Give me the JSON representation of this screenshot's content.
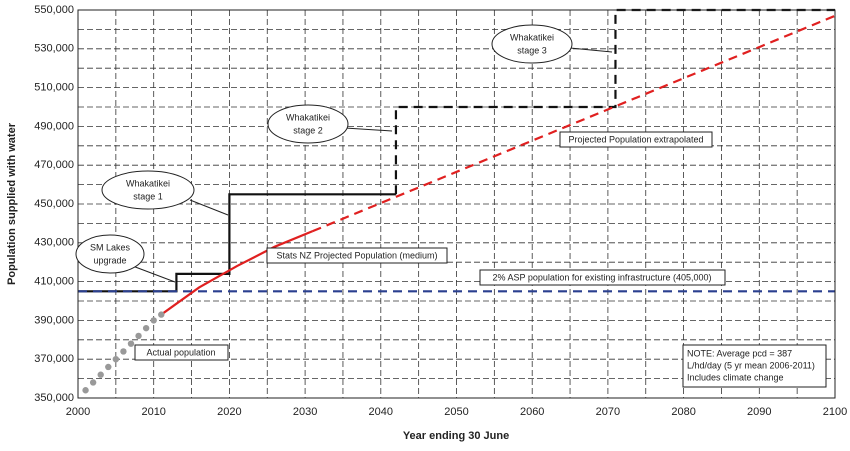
{
  "chart_data": {
    "type": "line",
    "xlabel": "Year ending 30 June",
    "ylabel": "Population supplied with water",
    "xlim": [
      2000,
      2100
    ],
    "ylim": [
      350000,
      550000
    ],
    "xticks": [
      2000,
      2010,
      2020,
      2030,
      2040,
      2050,
      2060,
      2070,
      2080,
      2090,
      2100
    ],
    "xgrid_minor": [
      2005,
      2015,
      2025,
      2035,
      2045,
      2055,
      2065,
      2075,
      2085,
      2095
    ],
    "yticks": [
      {
        "value": 350000,
        "label": "350,000"
      },
      {
        "value": 370000,
        "label": "370,000"
      },
      {
        "value": 390000,
        "label": "390,000"
      },
      {
        "value": 410000,
        "label": "410,000"
      },
      {
        "value": 430000,
        "label": "430,000"
      },
      {
        "value": 450000,
        "label": "450,000"
      },
      {
        "value": 470000,
        "label": "470,000"
      },
      {
        "value": 490000,
        "label": "490,000"
      },
      {
        "value": 510000,
        "label": "510,000"
      },
      {
        "value": 530000,
        "label": "530,000"
      },
      {
        "value": 550000,
        "label": "550,000"
      }
    ],
    "ygrid_minor": [
      360000,
      380000,
      400000,
      420000,
      440000,
      460000,
      480000,
      500000,
      520000,
      540000
    ],
    "grid": true,
    "series": [
      {
        "color": "#111111",
        "style": "solid",
        "x": [
          2000,
          2013,
          2013,
          2020,
          2020,
          2042
        ],
        "values": [
          405000,
          405000,
          414000,
          414000,
          455000,
          455000
        ]
      },
      {
        "color": "#111111",
        "style": "dashed",
        "x": [
          2042,
          2042,
          2071,
          2071,
          2100
        ],
        "values": [
          455000,
          500000,
          500000,
          550000,
          550000
        ]
      },
      {
        "name": "2% ASP population for existing infrastructure (405,000)",
        "color": "#2a3f8f",
        "style": "dashed",
        "x": [
          2000,
          2100
        ],
        "values": [
          405000,
          405000
        ]
      },
      {
        "name": "Stats NZ Projected Population (medium)",
        "color": "#e02020",
        "style": "solid",
        "x": [
          2011,
          2016,
          2021,
          2026,
          2031
        ],
        "values": [
          393000,
          407000,
          418000,
          428000,
          436000
        ]
      },
      {
        "name": "Projected Population extrapolated",
        "color": "#e02020",
        "style": "dashed",
        "x": [
          2031,
          2100
        ],
        "values": [
          436000,
          547000
        ]
      },
      {
        "name": "Actual population",
        "color": "#999999",
        "style": "dots",
        "x": [
          2001,
          2002,
          2003,
          2004,
          2005,
          2006,
          2007,
          2008,
          2009,
          2010,
          2011
        ],
        "values": [
          354000,
          358000,
          362000,
          366000,
          370000,
          374000,
          378000,
          382000,
          386000,
          390000,
          393000
        ]
      }
    ],
    "annotations": [
      {
        "lines": [
          "SM Lakes",
          "upgrade"
        ]
      },
      {
        "lines": [
          "Whakatikei",
          "stage 1"
        ]
      },
      {
        "lines": [
          "Whakatikei",
          "stage 2"
        ]
      },
      {
        "lines": [
          "Whakatikei",
          "stage 3"
        ]
      },
      {
        "lines": [
          "NOTE:  Average pcd = 387",
          "L/hd/day (5 yr mean 2006-2011)",
          "Includes climate change"
        ]
      }
    ]
  }
}
